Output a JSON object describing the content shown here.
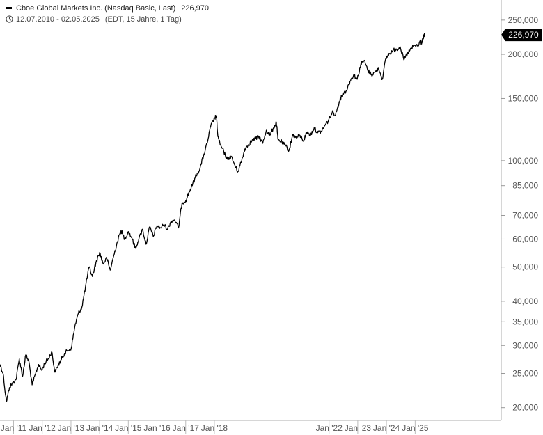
{
  "header": {
    "instrument": "Cboe Global Markets Inc. (Nasdaq Basic, Last)",
    "last_value": "226,970",
    "date_range": "12.07.2010 - 02.05.2025",
    "info": "(EDT, 15 Jahre, 1 Tag)"
  },
  "icons": {
    "legend": "line-swatch-icon",
    "time": "clock-icon"
  },
  "colors": {
    "line": "#000000",
    "axis": "#d6d6d6",
    "tick_text": "#555555",
    "badge_bg": "#000000",
    "badge_text": "#ffffff"
  },
  "chart_data": {
    "type": "line",
    "title": "Cboe Global Markets Inc. (Nasdaq Basic, Last)",
    "yscale": "log",
    "ylim": [
      19000,
      265000
    ],
    "xlim": [
      "2010-07-12",
      "2025-05-02"
    ],
    "y_ticks": [
      20000,
      25000,
      30000,
      35000,
      40000,
      50000,
      60000,
      70000,
      85000,
      100000,
      150000,
      200000,
      250000
    ],
    "y_tick_labels": [
      "20,000",
      "25,000",
      "30,000",
      "35,000",
      "40,000",
      "50,000",
      "60,000",
      "70,000",
      "85,000",
      "100,000",
      "150,000",
      "200,000",
      "250,000"
    ],
    "x_ticks": [
      "2011-01-01",
      "2012-01-01",
      "2013-01-01",
      "2014-01-01",
      "2015-01-01",
      "2016-01-01",
      "2017-01-01",
      "2018-01-01",
      "2022-01-01",
      "2023-01-01",
      "2024-01-01",
      "2025-01-01"
    ],
    "x_tick_labels": [
      "Jan '11",
      "Jan '12",
      "Jan '13",
      "Jan '14",
      "Jan '15",
      "Jan '16",
      "Jan '17",
      "Jan '18",
      "Jan '22",
      "Jan '23",
      "Jan '24",
      "Jan '25"
    ],
    "last_value_label": "226,970",
    "grid": false,
    "series": [
      {
        "x": [
          "2010-07-12",
          "2010-08-20",
          "2010-10-01",
          "2010-11-10",
          "2010-12-20",
          "2011-02-01",
          "2011-03-15",
          "2011-04-25",
          "2011-06-05",
          "2011-07-15",
          "2011-08-25",
          "2011-10-05",
          "2011-11-15",
          "2011-12-25",
          "2012-02-05",
          "2012-03-20",
          "2012-05-01",
          "2012-06-10",
          "2012-07-20",
          "2012-09-01",
          "2012-10-10",
          "2012-11-20",
          "2013-01-05",
          "2013-02-20",
          "2013-04-05",
          "2013-05-20",
          "2013-07-05",
          "2013-08-20",
          "2013-10-01",
          "2013-11-15",
          "2014-01-01",
          "2014-02-15",
          "2014-04-01",
          "2014-05-15",
          "2014-07-01",
          "2014-08-15",
          "2014-10-01",
          "2014-11-15",
          "2015-01-01",
          "2015-02-15",
          "2015-04-01",
          "2015-05-15",
          "2015-07-01",
          "2015-08-15",
          "2015-10-01",
          "2015-11-15",
          "2016-01-01",
          "2016-02-15",
          "2016-04-01",
          "2016-05-15",
          "2016-07-01",
          "2016-08-15",
          "2016-10-01",
          "2016-11-15",
          "2017-01-01",
          "2017-02-15",
          "2017-04-01",
          "2017-05-15",
          "2017-07-01",
          "2017-08-15",
          "2017-10-01",
          "2017-11-15",
          "2018-01-05",
          "2018-01-26",
          "2018-02-15",
          "2018-03-15",
          "2018-05-01",
          "2018-06-15",
          "2018-08-01",
          "2018-09-15",
          "2018-10-25",
          "2018-12-15",
          "2019-01-25",
          "2019-03-10",
          "2019-04-25",
          "2019-06-10",
          "2019-07-25",
          "2019-09-10",
          "2019-10-25",
          "2019-12-10",
          "2020-01-25",
          "2020-03-01",
          "2020-03-20",
          "2020-05-10",
          "2020-06-25",
          "2020-08-10",
          "2020-09-25",
          "2020-11-10",
          "2020-12-25",
          "2021-02-10",
          "2021-03-25",
          "2021-05-10",
          "2021-06-25",
          "2021-08-10",
          "2021-09-25",
          "2021-11-10",
          "2021-12-25",
          "2022-02-10",
          "2022-03-25",
          "2022-05-10",
          "2022-06-25",
          "2022-08-10",
          "2022-09-25",
          "2022-11-10",
          "2022-12-25",
          "2023-02-10",
          "2023-03-25",
          "2023-05-10",
          "2023-06-25",
          "2023-08-10",
          "2023-09-25",
          "2023-11-10",
          "2023-12-25",
          "2024-02-10",
          "2024-03-25",
          "2024-05-10",
          "2024-06-25",
          "2024-08-10",
          "2024-09-25",
          "2024-11-10",
          "2024-12-25",
          "2025-02-10",
          "2025-03-10",
          "2025-03-25",
          "2025-04-10",
          "2025-05-02"
        ],
        "y": [
          26500,
          25000,
          20800,
          22800,
          23500,
          24000,
          27500,
          24500,
          28200,
          27000,
          23200,
          24800,
          26500,
          25500,
          26800,
          27500,
          28800,
          25200,
          26300,
          27400,
          28500,
          29000,
          29500,
          34000,
          37000,
          38500,
          44000,
          50000,
          47000,
          51500,
          55000,
          51000,
          53000,
          49000,
          54000,
          59000,
          63500,
          60000,
          63000,
          60500,
          56500,
          60000,
          64000,
          58000,
          65000,
          61000,
          65500,
          64500,
          66000,
          64000,
          67500,
          68000,
          64500,
          76000,
          77000,
          81500,
          86000,
          91000,
          95000,
          103000,
          112000,
          125000,
          132000,
          134000,
          117000,
          111000,
          106000,
          101000,
          103000,
          97500,
          93000,
          100000,
          108000,
          111000,
          114000,
          115500,
          117000,
          112000,
          122000,
          118000,
          124000,
          128000,
          115000,
          113000,
          110000,
          107000,
          118500,
          116000,
          118000,
          114000,
          120500,
          118000,
          124000,
          120000,
          121000,
          126000,
          130000,
          137000,
          135000,
          147000,
          155000,
          158000,
          168000,
          175000,
          170000,
          188000,
          192000,
          180000,
          175000,
          178000,
          183000,
          170000,
          195000,
          201000,
          205000,
          207000,
          210000,
          193000,
          201000,
          207000,
          212000,
          211000,
          219000,
          214000,
          222000,
          226970
        ]
      }
    ]
  }
}
